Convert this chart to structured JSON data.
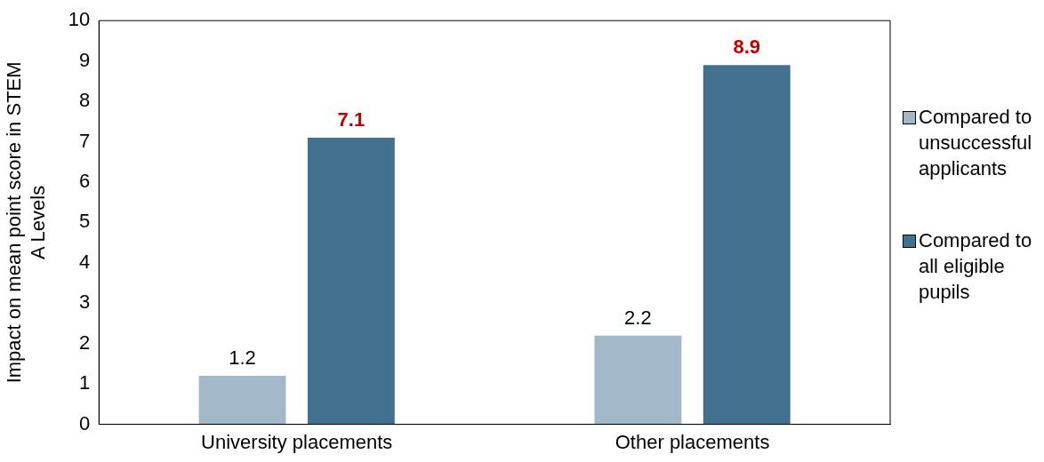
{
  "chart_data": {
    "type": "bar",
    "ylabel": "Impact on mean point score in STEM A Levels",
    "categories": [
      "University placements",
      "Other placements"
    ],
    "series": [
      {
        "name": "Compared to unsuccessful applicants",
        "color": "#a3b8c8",
        "values": [
          1.2,
          2.2
        ]
      },
      {
        "name": "Compared to all eligible pupils",
        "color": "#41718f",
        "values": [
          7.1,
          8.9
        ]
      }
    ],
    "ylim": [
      0,
      10
    ],
    "yticks": [
      0,
      1,
      2,
      3,
      4,
      5,
      6,
      7,
      8,
      9,
      10
    ],
    "grid": false,
    "legend": "right",
    "data_labels": true
  }
}
